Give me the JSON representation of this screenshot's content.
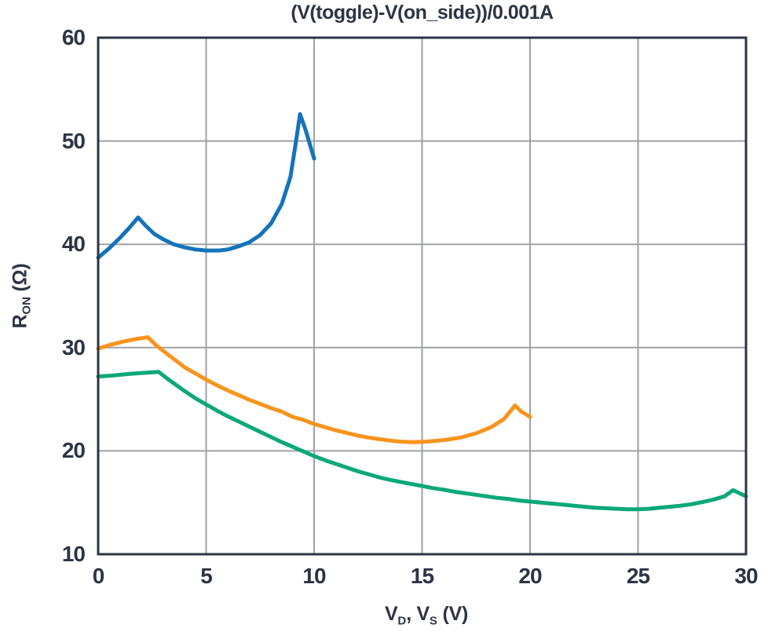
{
  "chart_data": {
    "type": "line",
    "title": "(V(toggle)-V(on_side))/0.001A",
    "xlabel": "VD, VS (V)",
    "ylabel": "RON (Ω)",
    "xlabel_segments": [
      {
        "text": "V"
      },
      {
        "text": "D",
        "sub": true
      },
      {
        "text": ", V"
      },
      {
        "text": "S",
        "sub": true
      },
      {
        "text": " (V)"
      }
    ],
    "ylabel_segments": [
      {
        "text": "R"
      },
      {
        "text": "ON",
        "sub": true
      },
      {
        "text": " (Ω)"
      }
    ],
    "xlim": [
      0,
      30
    ],
    "ylim": [
      10,
      60
    ],
    "xticks": [
      0,
      5,
      10,
      15,
      20,
      25,
      30
    ],
    "yticks": [
      10,
      20,
      30,
      40,
      50,
      60
    ],
    "grid": true,
    "legend_position": "none",
    "colors": {
      "text": "#2e3444",
      "axis_border": "#2e3444",
      "gridline": "#9fa1a6",
      "background": "#ffffff"
    },
    "series": [
      {
        "name": "blue-curve",
        "color": "#1473b9",
        "points": [
          [
            0,
            38.7
          ],
          [
            0.5,
            39.6
          ],
          [
            1.0,
            40.6
          ],
          [
            1.4,
            41.5
          ],
          [
            1.85,
            42.6
          ],
          [
            2.2,
            41.8
          ],
          [
            2.6,
            41.0
          ],
          [
            3.0,
            40.5
          ],
          [
            3.5,
            40.0
          ],
          [
            4.0,
            39.7
          ],
          [
            4.5,
            39.5
          ],
          [
            5.0,
            39.4
          ],
          [
            5.6,
            39.4
          ],
          [
            6.0,
            39.5
          ],
          [
            6.5,
            39.8
          ],
          [
            7.0,
            40.2
          ],
          [
            7.5,
            40.9
          ],
          [
            8.0,
            42.0
          ],
          [
            8.5,
            43.9
          ],
          [
            8.9,
            46.5
          ],
          [
            9.15,
            49.8
          ],
          [
            9.35,
            52.6
          ],
          [
            9.6,
            51.1
          ],
          [
            10.0,
            48.3
          ]
        ]
      },
      {
        "name": "orange-curve",
        "color": "#f7941e",
        "points": [
          [
            0,
            29.9
          ],
          [
            0.6,
            30.3
          ],
          [
            1.2,
            30.6
          ],
          [
            1.8,
            30.85
          ],
          [
            2.3,
            31.0
          ],
          [
            2.7,
            30.2
          ],
          [
            3.0,
            29.7
          ],
          [
            3.5,
            28.9
          ],
          [
            4.0,
            28.1
          ],
          [
            4.5,
            27.5
          ],
          [
            5.0,
            26.9
          ],
          [
            5.5,
            26.35
          ],
          [
            6.0,
            25.85
          ],
          [
            6.5,
            25.4
          ],
          [
            7.0,
            24.95
          ],
          [
            7.5,
            24.55
          ],
          [
            8.0,
            24.15
          ],
          [
            8.5,
            23.8
          ],
          [
            9.0,
            23.3
          ],
          [
            9.5,
            23.0
          ],
          [
            10.0,
            22.6
          ],
          [
            10.5,
            22.3
          ],
          [
            11.0,
            22.0
          ],
          [
            11.5,
            21.75
          ],
          [
            12.0,
            21.5
          ],
          [
            12.5,
            21.3
          ],
          [
            13.0,
            21.15
          ],
          [
            13.5,
            21.0
          ],
          [
            14.0,
            20.9
          ],
          [
            14.6,
            20.85
          ],
          [
            15.2,
            20.9
          ],
          [
            16.0,
            21.05
          ],
          [
            16.8,
            21.3
          ],
          [
            17.5,
            21.7
          ],
          [
            18.2,
            22.3
          ],
          [
            18.8,
            23.1
          ],
          [
            19.3,
            24.4
          ],
          [
            19.6,
            23.8
          ],
          [
            20.0,
            23.3
          ]
        ]
      },
      {
        "name": "green-curve",
        "color": "#0ca878",
        "points": [
          [
            0,
            27.2
          ],
          [
            0.7,
            27.3
          ],
          [
            1.4,
            27.45
          ],
          [
            2.1,
            27.55
          ],
          [
            2.8,
            27.65
          ],
          [
            3.2,
            27.0
          ],
          [
            3.6,
            26.4
          ],
          [
            4.0,
            25.8
          ],
          [
            4.5,
            25.1
          ],
          [
            5.0,
            24.5
          ],
          [
            5.5,
            23.9
          ],
          [
            6.0,
            23.35
          ],
          [
            6.5,
            22.85
          ],
          [
            7.0,
            22.35
          ],
          [
            7.5,
            21.85
          ],
          [
            8.0,
            21.35
          ],
          [
            8.5,
            20.85
          ],
          [
            9.0,
            20.4
          ],
          [
            9.5,
            19.95
          ],
          [
            10.0,
            19.5
          ],
          [
            10.5,
            19.1
          ],
          [
            11.0,
            18.75
          ],
          [
            11.5,
            18.4
          ],
          [
            12.0,
            18.05
          ],
          [
            12.5,
            17.75
          ],
          [
            13.0,
            17.45
          ],
          [
            13.5,
            17.2
          ],
          [
            14.0,
            17.0
          ],
          [
            14.5,
            16.8
          ],
          [
            15.0,
            16.6
          ],
          [
            15.5,
            16.4
          ],
          [
            16.0,
            16.25
          ],
          [
            16.5,
            16.05
          ],
          [
            17.0,
            15.9
          ],
          [
            17.5,
            15.75
          ],
          [
            18.0,
            15.6
          ],
          [
            18.5,
            15.45
          ],
          [
            19.0,
            15.35
          ],
          [
            19.5,
            15.2
          ],
          [
            20.0,
            15.1
          ],
          [
            20.5,
            15.0
          ],
          [
            21.0,
            14.9
          ],
          [
            21.5,
            14.8
          ],
          [
            22.0,
            14.7
          ],
          [
            22.5,
            14.6
          ],
          [
            23.0,
            14.5
          ],
          [
            23.5,
            14.45
          ],
          [
            24.0,
            14.4
          ],
          [
            24.5,
            14.35
          ],
          [
            25.0,
            14.35
          ],
          [
            25.5,
            14.4
          ],
          [
            26.0,
            14.5
          ],
          [
            26.5,
            14.6
          ],
          [
            27.0,
            14.7
          ],
          [
            27.5,
            14.85
          ],
          [
            28.0,
            15.05
          ],
          [
            28.5,
            15.3
          ],
          [
            29.0,
            15.6
          ],
          [
            29.4,
            16.2
          ],
          [
            29.7,
            15.9
          ],
          [
            30.0,
            15.6
          ]
        ]
      }
    ]
  }
}
